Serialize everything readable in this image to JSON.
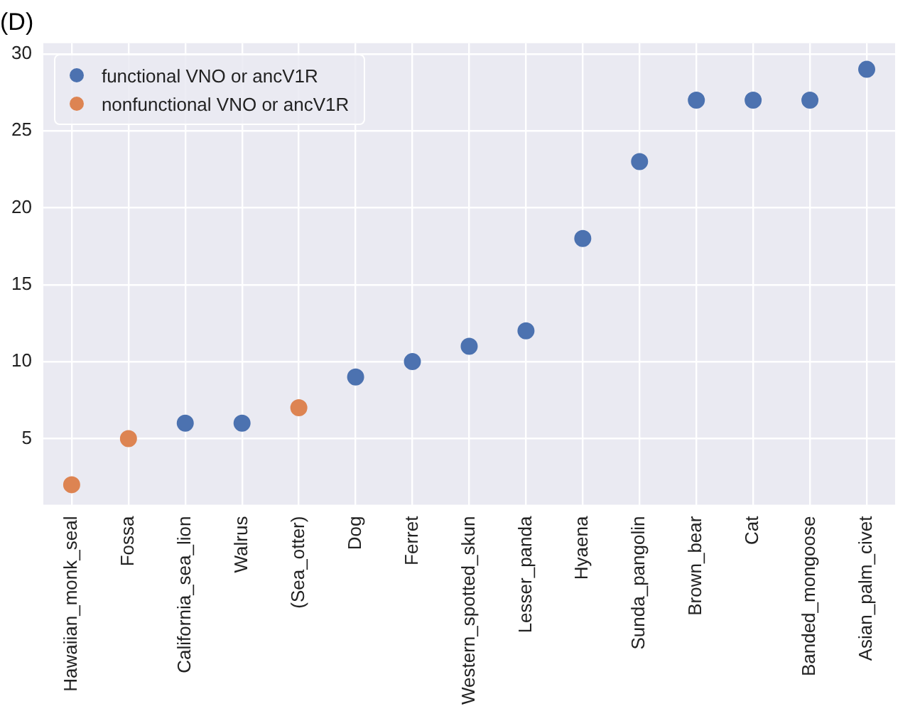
{
  "chart_data": {
    "type": "scatter",
    "title": "(D)",
    "categories": [
      "Hawaiian_monk_seal",
      "Fossa",
      "California_sea_lion",
      "Walrus",
      "(Sea_otter)",
      "Dog",
      "Ferret",
      "Western_spotted_skun",
      "Lesser_panda",
      "Hyaena",
      "Sunda_pangolin",
      "Brown_bear",
      "Cat",
      "Banded_mongoose",
      "Asian_palm_civet"
    ],
    "series": [
      {
        "name": "functional VNO or ancV1R",
        "color": "#4c72b0",
        "x": [
          "California_sea_lion",
          "Walrus",
          "Dog",
          "Ferret",
          "Western_spotted_skun",
          "Lesser_panda",
          "Hyaena",
          "Sunda_pangolin",
          "Brown_bear",
          "Cat",
          "Banded_mongoose",
          "Asian_palm_civet"
        ],
        "values": [
          6,
          6,
          9,
          10,
          11,
          12,
          18,
          23,
          27,
          27,
          27,
          29
        ]
      },
      {
        "name": "nonfunctional VNO or ancV1R",
        "color": "#dd8452",
        "x": [
          "Hawaiian_monk_seal",
          "Fossa",
          "(Sea_otter)"
        ],
        "values": [
          2,
          5,
          7
        ]
      }
    ],
    "ylim": [
      0.7,
      30.7
    ],
    "yticks": [
      5,
      10,
      15,
      20,
      25,
      30
    ],
    "grid": true,
    "legend": "top left",
    "marker": "circle"
  }
}
